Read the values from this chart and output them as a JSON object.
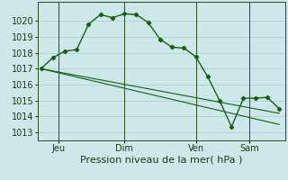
{
  "background_color": "#cce8e8",
  "grid_color": "#aacccc",
  "line_color": "#1a5c1a",
  "marker_color": "#1a5c1a",
  "series1_x": [
    0,
    1,
    2,
    3,
    4,
    5,
    6,
    7,
    8,
    9,
    10,
    11,
    12,
    13,
    14,
    15,
    16,
    17,
    18,
    19,
    20
  ],
  "series1_y": [
    1017.0,
    1017.7,
    1018.1,
    1018.2,
    1019.8,
    1020.4,
    1020.2,
    1020.45,
    1020.4,
    1019.9,
    1018.85,
    1018.35,
    1018.3,
    1017.75,
    1016.5,
    1015.0,
    1013.35,
    1015.15,
    1015.15,
    1015.2,
    1014.5
  ],
  "series2_x": [
    0,
    20
  ],
  "series2_y": [
    1017.0,
    1014.2
  ],
  "series3_x": [
    0,
    20
  ],
  "series3_y": [
    1017.0,
    1013.5
  ],
  "xtick_labels": [
    "Jeu",
    "Dim",
    "Ven",
    "Sam"
  ],
  "vline_positions": [
    1.5,
    7,
    13,
    17.5
  ],
  "ylim": [
    1012.5,
    1021.2
  ],
  "xlim": [
    -0.3,
    20.5
  ],
  "ytick_values": [
    1013,
    1014,
    1015,
    1016,
    1017,
    1018,
    1019,
    1020
  ],
  "xlabel": "Pression niveau de la mer( hPa )",
  "xlabel_fontsize": 8,
  "tick_fontsize": 7
}
